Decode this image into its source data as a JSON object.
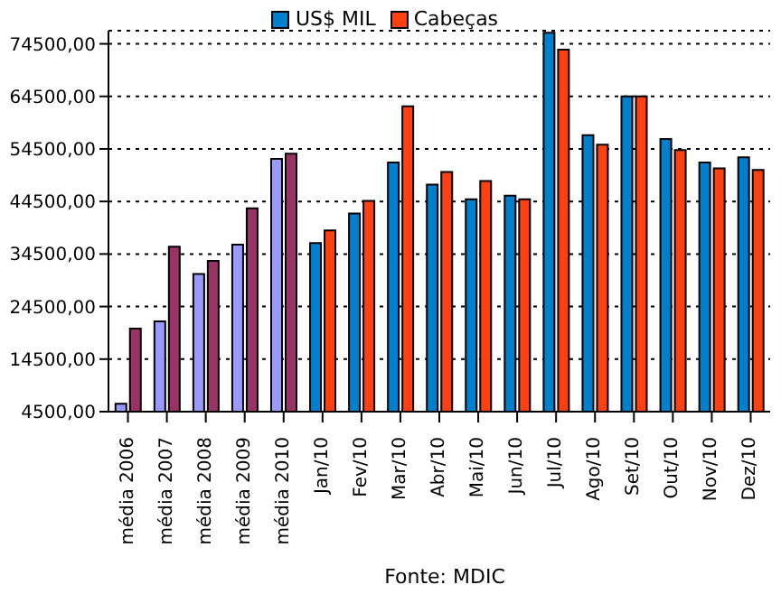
{
  "chart_data": {
    "type": "bar",
    "categories": [
      "média 2006",
      "média 2007",
      "média 2008",
      "média 2009",
      "média 2010",
      "Jan/10",
      "Fev/10",
      "Mar/10",
      "Abr/10",
      "Mai/10",
      "Jun/10",
      "Jul/10",
      "Ago/10",
      "Set/10",
      "Out/10",
      "Nov/10",
      "Dez/10"
    ],
    "series": [
      {
        "name": "US$ MIL",
        "color": "#0080cc",
        "colors": [
          "#9999ff",
          "#9999ff",
          "#9999ff",
          "#9999ff",
          "#9999ff",
          "#0080cc",
          "#0080cc",
          "#0080cc",
          "#0080cc",
          "#0080cc",
          "#0080cc",
          "#0080cc",
          "#0080cc",
          "#0080cc",
          "#0080cc",
          "#0080cc",
          "#0080cc"
        ],
        "values": [
          6000,
          21700,
          30700,
          36300,
          52600,
          36600,
          42200,
          51900,
          47700,
          44900,
          45600,
          76600,
          57100,
          64500,
          56400,
          51900,
          52900
        ]
      },
      {
        "name": "Cabeças",
        "color": "#ff4010",
        "colors": [
          "#993366",
          "#993366",
          "#993366",
          "#993366",
          "#993366",
          "#ff4010",
          "#ff4010",
          "#ff4010",
          "#ff4010",
          "#ff4010",
          "#ff4010",
          "#ff4010",
          "#ff4010",
          "#ff4010",
          "#ff4010",
          "#ff4010",
          "#ff4010"
        ],
        "values": [
          20300,
          35900,
          33200,
          43200,
          53600,
          39000,
          44600,
          62600,
          50100,
          48400,
          44900,
          73400,
          55300,
          64500,
          54300,
          50800,
          50500
        ]
      }
    ],
    "ylim": [
      4500,
      77000
    ],
    "yticks": [
      {
        "value": 4500,
        "label": "4500,00"
      },
      {
        "value": 14500,
        "label": "14500,00"
      },
      {
        "value": 24500,
        "label": "24500,00"
      },
      {
        "value": 34500,
        "label": "34500,00"
      },
      {
        "value": 44500,
        "label": "44500,00"
      },
      {
        "value": 54500,
        "label": "54500,00"
      },
      {
        "value": 64500,
        "label": "64500,00"
      },
      {
        "value": 74500,
        "label": "74500,00"
      }
    ],
    "grid": "y",
    "legend": "top",
    "annotations": [
      "Fonte: MDIC"
    ]
  }
}
